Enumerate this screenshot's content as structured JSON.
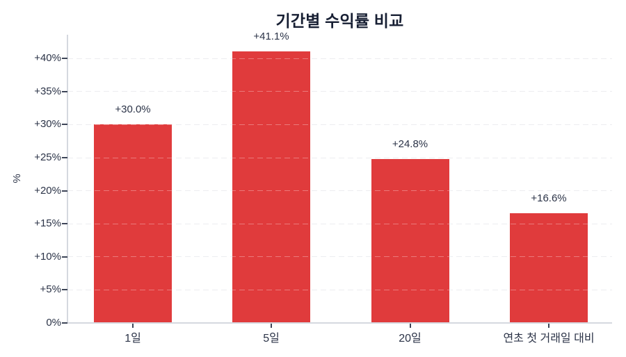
{
  "chart_data": {
    "type": "bar",
    "title": "기간별 수익률 비교",
    "xlabel": "",
    "ylabel": "%",
    "categories": [
      "1일",
      "5일",
      "20일",
      "연초 첫 거래일 대비"
    ],
    "values": [
      30.0,
      41.1,
      24.8,
      16.6
    ],
    "bar_labels": [
      "+30.0%",
      "+41.1%",
      "+24.8%",
      "+16.6%"
    ],
    "yticks": [
      {
        "value": 0,
        "label": "0%"
      },
      {
        "value": 5,
        "label": "+5%"
      },
      {
        "value": 10,
        "label": "+10%"
      },
      {
        "value": 15,
        "label": "+15%"
      },
      {
        "value": 20,
        "label": "+20%"
      },
      {
        "value": 25,
        "label": "+25%"
      },
      {
        "value": 30,
        "label": "+30%"
      },
      {
        "value": 35,
        "label": "+35%"
      },
      {
        "value": 40,
        "label": "+40%"
      }
    ],
    "ylim": [
      0,
      43.6
    ],
    "grid": "horizontal-dashed",
    "legend": "none",
    "colors": {
      "bar": "#e03b3c",
      "title_text": "#171f33",
      "axis_text": "#2b3347",
      "gridline": "#e3e4e9",
      "axis_line": "#d5d8df",
      "tick_mark": "#3c4456",
      "background": "#ffffff"
    }
  }
}
